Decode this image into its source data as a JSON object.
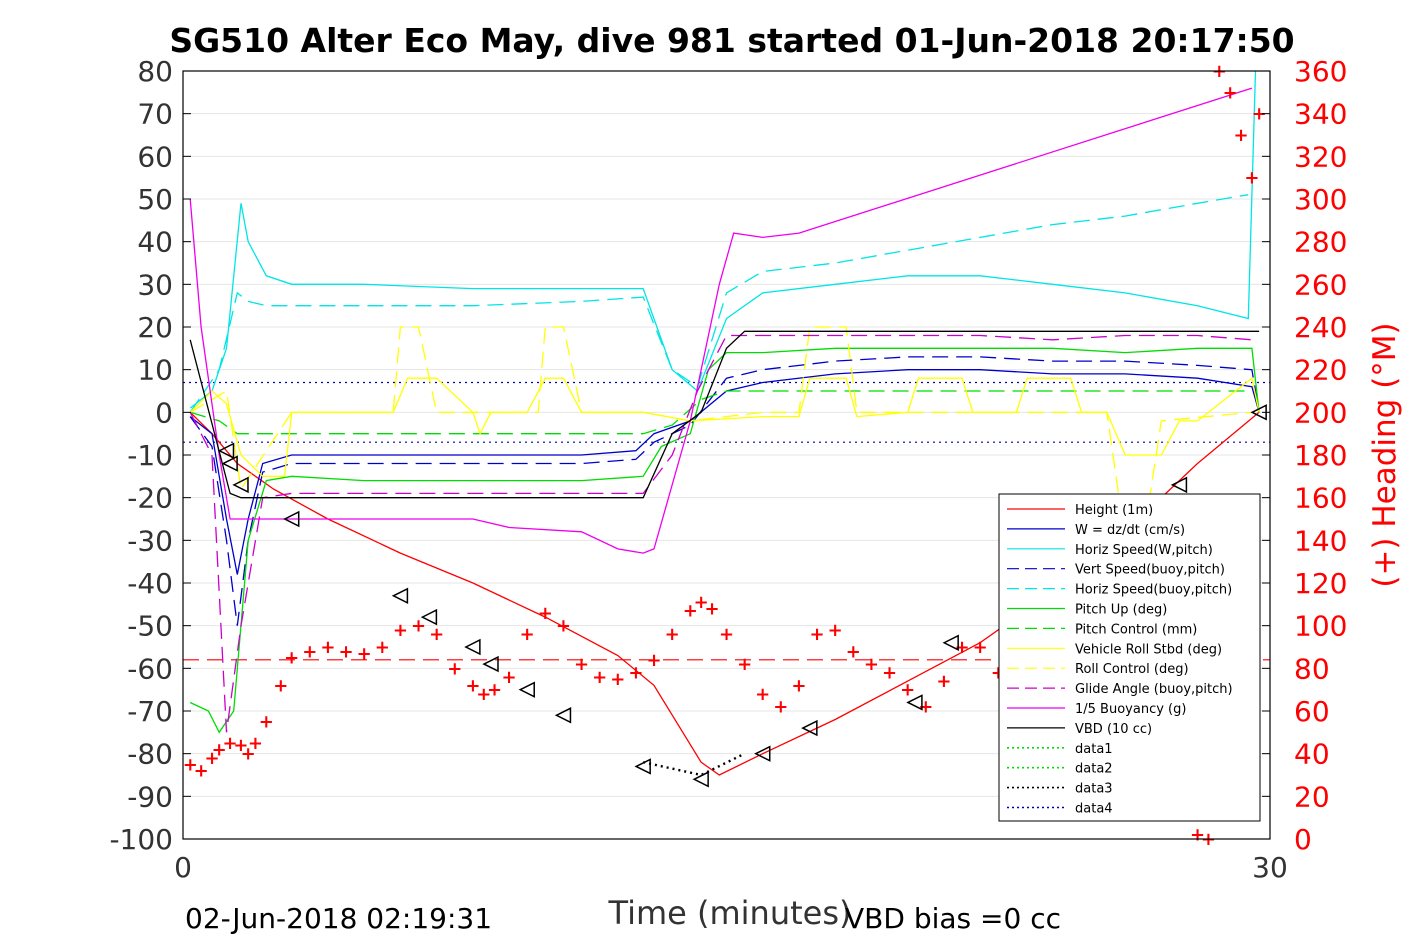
{
  "chart_data": {
    "type": "line",
    "title": "SG510 Alter Eco May, dive 981 started 01-Jun-2018 20:17:50",
    "xlabel": "Time (minutes)",
    "ylabel": "",
    "ylabel_right": "(+) Heading (°M)",
    "footer_left": "02-Jun-2018 02:19:31",
    "footer_right": "VBD bias =0 cc",
    "xlim": [
      0,
      30
    ],
    "ylim": [
      -100,
      80
    ],
    "ylim_right": [
      0,
      360
    ],
    "x_ticks": [
      "0",
      "30"
    ],
    "y_ticks": [
      "80",
      "70",
      "60",
      "50",
      "40",
      "30",
      "20",
      "10",
      "0",
      "-10",
      "-20",
      "-30",
      "-40",
      "-50",
      "-60",
      "-70",
      "-80",
      "-90",
      "-100"
    ],
    "y_ticks_right": [
      "360",
      "340",
      "320",
      "300",
      "280",
      "260",
      "240",
      "220",
      "200",
      "180",
      "160",
      "140",
      "120",
      "100",
      "80",
      "60",
      "40",
      "20",
      "0"
    ],
    "grid": true,
    "legend_position": "bottom-right",
    "colors": {
      "height": "#ff0000",
      "w": "#0000cc",
      "horiz_speed": "#00e5e5",
      "pitch": "#00dd00",
      "roll": "#ffff00",
      "glide": "#cc00cc",
      "buoyancy": "#ee00ee",
      "vbd": "#000000",
      "heading": "#ff0000",
      "data_green": "#00dd00",
      "data_blue": "#0000aa"
    },
    "series": [
      {
        "name": "Height (1m)",
        "style": "solid",
        "color": "#ff0000",
        "x": [
          0.2,
          0.8,
          1.5,
          2.5,
          4,
          6,
          8,
          10,
          12,
          13,
          14.3,
          14.8,
          16,
          18,
          20,
          22,
          24,
          26,
          28,
          29.7
        ],
        "y": [
          0,
          -5,
          -12,
          -18,
          -25,
          -33,
          -40,
          -48,
          -57,
          -64,
          -82,
          -85,
          -80,
          -72,
          -63,
          -54,
          -42,
          -28,
          -12,
          0
        ]
      },
      {
        "name": "W = dz/dt (cm/s)",
        "style": "solid",
        "color": "#0000cc",
        "x": [
          0.2,
          0.8,
          1.2,
          1.5,
          1.8,
          2.2,
          3,
          5,
          8,
          11,
          12.5,
          13,
          14,
          15,
          16,
          18,
          20,
          22,
          24,
          26,
          28,
          29.5,
          29.7
        ],
        "y": [
          -1,
          -5,
          -25,
          -38,
          -25,
          -12,
          -10,
          -10,
          -10,
          -10,
          -9,
          -5,
          -2,
          5,
          7,
          9,
          10,
          10,
          9,
          9,
          8,
          6,
          0
        ]
      },
      {
        "name": "Horiz Speed(W,pitch)",
        "style": "solid",
        "color": "#00e5e5",
        "x": [
          0.2,
          0.8,
          1.2,
          1.6,
          1.8,
          2.3,
          3,
          5,
          8,
          11,
          12.7,
          13.5,
          14.2,
          15,
          16,
          18,
          20,
          22,
          24,
          26,
          28,
          29.4,
          29.6
        ],
        "y": [
          1,
          5,
          15,
          49,
          40,
          32,
          30,
          30,
          29,
          29,
          29,
          10,
          5,
          22,
          28,
          30,
          32,
          32,
          30,
          28,
          25,
          22,
          80
        ]
      },
      {
        "name": "Vert Speed(buoy,pitch)",
        "style": "dashed",
        "color": "#0000cc",
        "x": [
          0.2,
          0.8,
          1.2,
          1.5,
          1.8,
          2.2,
          3,
          5,
          8,
          11,
          12.5,
          13,
          14,
          15,
          16,
          18,
          20,
          22,
          24,
          26,
          28,
          29.5,
          29.7
        ],
        "y": [
          -1,
          -8,
          -30,
          -50,
          -30,
          -14,
          -12,
          -12,
          -12,
          -12,
          -11,
          -7,
          -3,
          8,
          10,
          12,
          13,
          13,
          12,
          12,
          11,
          10,
          0
        ]
      },
      {
        "name": "Horiz Speed(buoy,pitch)",
        "style": "dashed",
        "color": "#00e5e5",
        "x": [
          0.2,
          1.0,
          1.5,
          1.8,
          2.3,
          4,
          8,
          11,
          12.7,
          13.5,
          14.2,
          15,
          16,
          18,
          20,
          22,
          24,
          26,
          28,
          29.4
        ],
        "y": [
          0,
          10,
          28,
          26,
          25,
          25,
          25,
          26,
          27,
          10,
          6,
          28,
          33,
          35,
          38,
          41,
          44,
          46,
          49,
          51
        ]
      },
      {
        "name": "Pitch Up (deg)",
        "style": "solid",
        "color": "#00dd00",
        "x": [
          0.2,
          0.7,
          1.0,
          1.4,
          1.8,
          2.3,
          3,
          5,
          8,
          11,
          12.7,
          13.2,
          14,
          14.5,
          15,
          16,
          18,
          20,
          22,
          24,
          26,
          28,
          29.5,
          29.7
        ],
        "y": [
          -68,
          -70,
          -75,
          -70,
          -30,
          -16,
          -15,
          -16,
          -16,
          -16,
          -15,
          -8,
          -5,
          10,
          14,
          14,
          15,
          15,
          15,
          15,
          14,
          15,
          15,
          0
        ]
      },
      {
        "name": "Pitch Control (mm)",
        "style": "dashed",
        "color": "#00dd00",
        "x": [
          0.2,
          1.0,
          1.5,
          2.0,
          5,
          8,
          11,
          12.7,
          13.5,
          14.3,
          15,
          18,
          22,
          26,
          29.5
        ],
        "y": [
          0,
          -2,
          -5,
          -5,
          -5,
          -5,
          -5,
          -5,
          -3,
          3,
          5,
          5,
          5,
          5,
          5
        ]
      },
      {
        "name": "Vehicle Roll Stbd (deg)",
        "style": "solid",
        "color": "#ffff00",
        "x": [
          0.2,
          0.8,
          1.2,
          1.6,
          2.2,
          2.8,
          3,
          5,
          5.8,
          6.2,
          7,
          8,
          8.2,
          8.5,
          9.5,
          10,
          10.5,
          11,
          12.7,
          14,
          16,
          17,
          17.3,
          18.3,
          18.6,
          20,
          20.3,
          21.5,
          21.8,
          23,
          23.3,
          24.5,
          24.8,
          25.5,
          26,
          26.5,
          27,
          27.5,
          28,
          29.5,
          29.7
        ],
        "y": [
          0,
          5,
          2,
          -10,
          -15,
          -15,
          0,
          0,
          0,
          8,
          8,
          0,
          -5,
          0,
          0,
          8,
          8,
          0,
          0,
          -2,
          -1,
          -1,
          8,
          8,
          -1,
          0,
          8,
          8,
          0,
          0,
          8,
          8,
          0,
          0,
          -10,
          -10,
          -10,
          -2,
          -2,
          8,
          0
        ]
      },
      {
        "name": "Roll Control (deg)",
        "style": "dashed",
        "color": "#ffff00",
        "x": [
          0.2,
          1.2,
          1.6,
          3,
          5.8,
          6.0,
          6.5,
          7,
          8,
          8.5,
          9.8,
          10,
          10.5,
          11,
          12.7,
          14,
          16,
          17,
          17.3,
          18.3,
          18.6,
          24.5,
          25.5,
          26,
          26.5,
          27,
          29.5
        ],
        "y": [
          0,
          5,
          -18,
          0,
          0,
          20,
          20,
          0,
          0,
          0,
          0,
          20,
          20,
          0,
          0,
          -2,
          0,
          0,
          20,
          20,
          0,
          0,
          0,
          -30,
          -30,
          -2,
          0
        ]
      },
      {
        "name": "Glide Angle (buoy,pitch)",
        "style": "dashed",
        "color": "#cc00cc",
        "x": [
          0.2,
          0.8,
          1.2,
          1.6,
          2.2,
          3,
          5,
          8,
          11,
          12.7,
          13.5,
          14.2,
          15,
          16,
          18,
          20,
          22,
          24,
          26,
          28,
          29.5
        ],
        "y": [
          0,
          -10,
          -75,
          -50,
          -20,
          -19,
          -19,
          -19,
          -19,
          -19,
          -10,
          5,
          18,
          18,
          18,
          18,
          18,
          17,
          18,
          18,
          17
        ]
      },
      {
        "name": "1/5 Buoyancy (g)",
        "style": "solid",
        "color": "#ee00ee",
        "x": [
          0.2,
          0.5,
          1.0,
          1.3,
          1.8,
          3,
          5,
          8,
          9,
          11,
          12,
          12.7,
          13,
          14,
          14.8,
          15.2,
          16,
          17,
          29.5
        ],
        "y": [
          50,
          20,
          -10,
          -25,
          -25,
          -25,
          -25,
          -25,
          -27,
          -28,
          -32,
          -33,
          -32,
          -2,
          30,
          42,
          41,
          42,
          76
        ]
      },
      {
        "name": "VBD (10 cc)",
        "style": "solid",
        "color": "#000000",
        "x": [
          0.2,
          1.3,
          1.6,
          3,
          8,
          12.7,
          13.5,
          14.3,
          15,
          15.5,
          16,
          29.7
        ],
        "y": [
          17,
          -19,
          -20,
          -20,
          -20,
          -20,
          -5,
          0,
          15,
          19,
          19,
          19
        ]
      },
      {
        "name": "data1",
        "style": "dotted",
        "color": "#00dd00",
        "x": [],
        "y": []
      },
      {
        "name": "data2",
        "style": "dotted",
        "color": "#00dd00",
        "x": [],
        "y": []
      },
      {
        "name": "data3",
        "style": "dotted",
        "color": "#000000",
        "x": [
          12.7,
          14.3,
          15.5
        ],
        "y": [
          -82,
          -85,
          -80
        ]
      },
      {
        "name": "data4",
        "style": "dotted",
        "color": "#0000aa",
        "x": [],
        "y": []
      }
    ],
    "reference_lines": [
      {
        "axis": "left",
        "y": 7,
        "style": "dotted",
        "color": "#0000aa"
      },
      {
        "axis": "left",
        "y": -7,
        "style": "dotted",
        "color": "#0000aa"
      },
      {
        "axis": "right",
        "y": 84,
        "style": "dashed",
        "color": "#ff0000"
      }
    ],
    "heading": {
      "axis": "right",
      "marker": "+",
      "color": "#ff0000",
      "x": [
        0.2,
        0.5,
        0.8,
        1.0,
        1.3,
        1.6,
        1.8,
        2.0,
        2.3,
        2.7,
        3,
        3.5,
        4,
        4.5,
        5,
        5.5,
        6,
        6.5,
        7,
        7.5,
        8,
        8.3,
        8.6,
        9,
        9.5,
        10,
        10.5,
        11,
        11.5,
        12,
        12.5,
        13,
        13.5,
        14,
        14.3,
        14.6,
        15,
        15.5,
        16,
        16.5,
        17,
        17.5,
        18,
        18.5,
        19,
        19.5,
        20,
        20.5,
        21,
        21.5,
        22,
        22.5,
        23,
        23.5,
        24,
        24.5,
        25,
        25.5,
        26,
        26.5,
        27,
        27.5,
        28.0,
        28.3,
        28.6,
        28.9,
        29.2,
        29.5,
        29.7
      ],
      "y": [
        35,
        32,
        38,
        42,
        45,
        44,
        40,
        45,
        55,
        72,
        85,
        88,
        90,
        88,
        87,
        90,
        98,
        100,
        96,
        80,
        72,
        68,
        70,
        76,
        96,
        106,
        100,
        82,
        76,
        75,
        78,
        84,
        96,
        107,
        111,
        108,
        96,
        82,
        68,
        62,
        72,
        96,
        98,
        88,
        82,
        78,
        70,
        62,
        74,
        90,
        90,
        78,
        62,
        52,
        44,
        55,
        78,
        100,
        82,
        62,
        40,
        18,
        2,
        0,
        360,
        350,
        330,
        310,
        340
      ]
    },
    "markers": {
      "description": "triangle markers on height curve",
      "x": [
        1.2,
        1.3,
        1.6,
        3,
        6,
        6.8,
        8,
        8.5,
        9.5,
        10.5,
        12.7,
        14.3,
        16,
        17.3,
        20.2,
        21.2,
        26,
        27.5,
        29.7
      ],
      "y": [
        -9,
        -12,
        -17,
        -25,
        -43,
        -48,
        -55,
        -59,
        -65,
        -71,
        -83,
        -86,
        -80,
        -74,
        -68,
        -54,
        -48,
        -17,
        0
      ]
    }
  }
}
